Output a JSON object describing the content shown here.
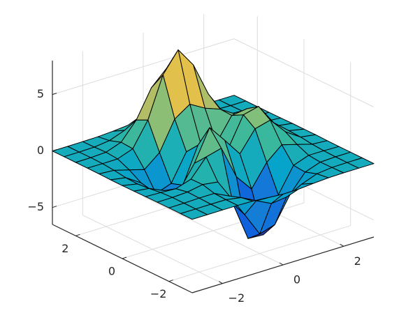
{
  "chart_data": {
    "type": "surface",
    "x": [
      -3,
      -2.5,
      -2,
      -1.5,
      -1,
      -0.5,
      0,
      0.5,
      1,
      1.5,
      2,
      2.5,
      3
    ],
    "y": [
      -3,
      -2.5,
      -2,
      -1.5,
      -1,
      -0.5,
      0,
      0.5,
      1,
      1.5,
      2,
      2.5,
      3
    ],
    "z": [
      [
        0,
        0,
        0,
        0,
        -0.03,
        -0.14,
        -0.24,
        -0.22,
        -0.11,
        -0.03,
        0,
        0,
        0
      ],
      [
        0,
        0,
        0.01,
        0,
        -0.23,
        -0.91,
        -1.57,
        -1.41,
        -0.69,
        -0.18,
        -0.03,
        0,
        0
      ],
      [
        0,
        0.01,
        0.05,
        0.05,
        -0.59,
        -2.64,
        -4.76,
        -4.35,
        -2.1,
        -0.53,
        -0.06,
        0,
        0
      ],
      [
        0,
        0.01,
        0.08,
        0.33,
        0.15,
        -2.19,
        -5.68,
        -5.76,
        -2.64,
        -0.44,
        0.04,
        0.03,
        0
      ],
      [
        -0.01,
        -0.06,
        -0.13,
        0.3,
        1.86,
        2.22,
        -0.72,
        -2.22,
        -0.27,
        0.88,
        0.5,
        0.11,
        0.01
      ],
      [
        -0.03,
        -0.2,
        -0.8,
        -1.21,
        0.8,
        3.55,
        2.0,
        0.39,
        2.2,
        2.56,
        1.12,
        0.24,
        0.03
      ],
      [
        -0.04,
        -0.3,
        -1.33,
        -2.77,
        -1.65,
        1.48,
        0.98,
        0.37,
        2.94,
        3.27,
        1.41,
        0.3,
        0.03
      ],
      [
        -0.03,
        -0.25,
        -1.12,
        -2.49,
        -2.0,
        0.39,
        0.46,
        0.38,
        2.38,
        2.56,
        1.09,
        0.23,
        0.03
      ],
      [
        -0.01,
        -0.11,
        -0.48,
        -0.86,
        0.23,
        2.79,
        3.69,
        2.93,
        2.43,
        1.58,
        0.58,
        0.11,
        0.01
      ],
      [
        0,
        -0.02,
        -0.01,
        0.48,
        2.61,
        6.2,
        8.0,
        6.25,
        3.25,
        1.19,
        0.29,
        0.05,
        0
      ],
      [
        0,
        0.01,
        0.08,
        0.55,
        2.1,
        4.56,
        5.86,
        4.57,
        2.21,
        0.68,
        0.13,
        0.02,
        0
      ],
      [
        0,
        0,
        0.03,
        0.19,
        0.69,
        1.47,
        1.88,
        1.47,
        0.7,
        0.2,
        0.04,
        0,
        0
      ],
      [
        0,
        0,
        0.01,
        0.03,
        0.11,
        0.23,
        0.3,
        0.23,
        0.11,
        0.03,
        0.01,
        0,
        0
      ]
    ],
    "xlim": [
      -3,
      3
    ],
    "ylim": [
      -3,
      3
    ],
    "zlim": [
      -6.5,
      8
    ],
    "xticks": [
      {
        "value": -2,
        "label": "−2"
      },
      0,
      2
    ],
    "yticks": [
      {
        "value": -2,
        "label": "−2"
      },
      0,
      2
    ],
    "zticks": [
      {
        "value": -5,
        "label": "−5"
      },
      0,
      5
    ],
    "grid": true,
    "colormap": "parula"
  }
}
